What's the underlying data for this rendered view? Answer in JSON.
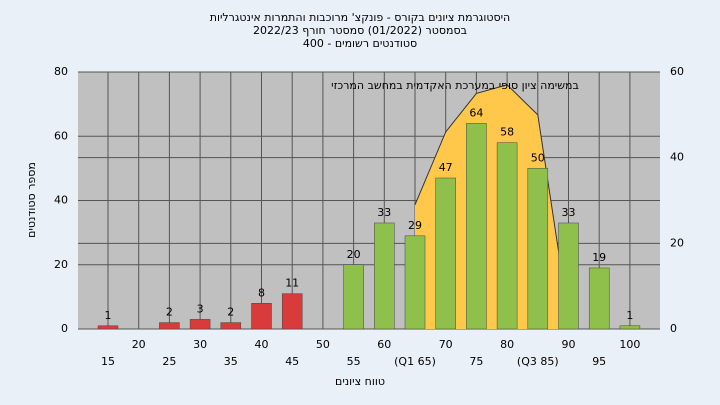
{
  "chart_data": {
    "type": "bar",
    "title": [
      "היסטוגרמת ציונים בקורס - פונקצ' מרוכבות והתמרות אינטגרליות",
      "בסמסטר (01/2022) סמסטר חורף 2022/23",
      "סטודנטים רשומים - 400"
    ],
    "annotation": "במשימה ציון סופי במערכת האקדמית במחשב המרכזי",
    "x_label": "טווח ציונים",
    "y_label": "מספר סטודנטים",
    "categories": [
      "15",
      "20",
      "25",
      "30",
      "35",
      "40",
      "45",
      "50",
      "55",
      "60",
      "(Q1 65)",
      "70",
      "75",
      "80",
      "(Q3 85)",
      "90",
      "95",
      "100"
    ],
    "values": [
      1,
      null,
      2,
      3,
      2,
      8,
      11,
      null,
      20,
      33,
      29,
      47,
      64,
      58,
      50,
      33,
      19,
      1
    ],
    "bar_colors": [
      "#d93a3a",
      "#d93a3a",
      "#d93a3a",
      "#d93a3a",
      "#d93a3a",
      "#d93a3a",
      "#d93a3a",
      "#d93a3a",
      "#8fc04c",
      "#8fc04c",
      "#8fc04c",
      "#8fc04c",
      "#8fc04c",
      "#8fc04c",
      "#8fc04c",
      "#8fc04c",
      "#8fc04c",
      "#8fc04c"
    ],
    "ylim": [
      0,
      80
    ],
    "yticks": [
      0,
      20,
      40,
      60,
      80
    ],
    "y2lim": [
      0,
      60
    ],
    "y2ticks": [
      0,
      20,
      40,
      60
    ],
    "curve": {
      "axis": "y2",
      "color": "#ffc84a",
      "x": [
        65,
        70,
        75,
        80,
        85,
        88.5
      ],
      "values": [
        29,
        46,
        55,
        57,
        50,
        17
      ]
    },
    "grid": true
  }
}
